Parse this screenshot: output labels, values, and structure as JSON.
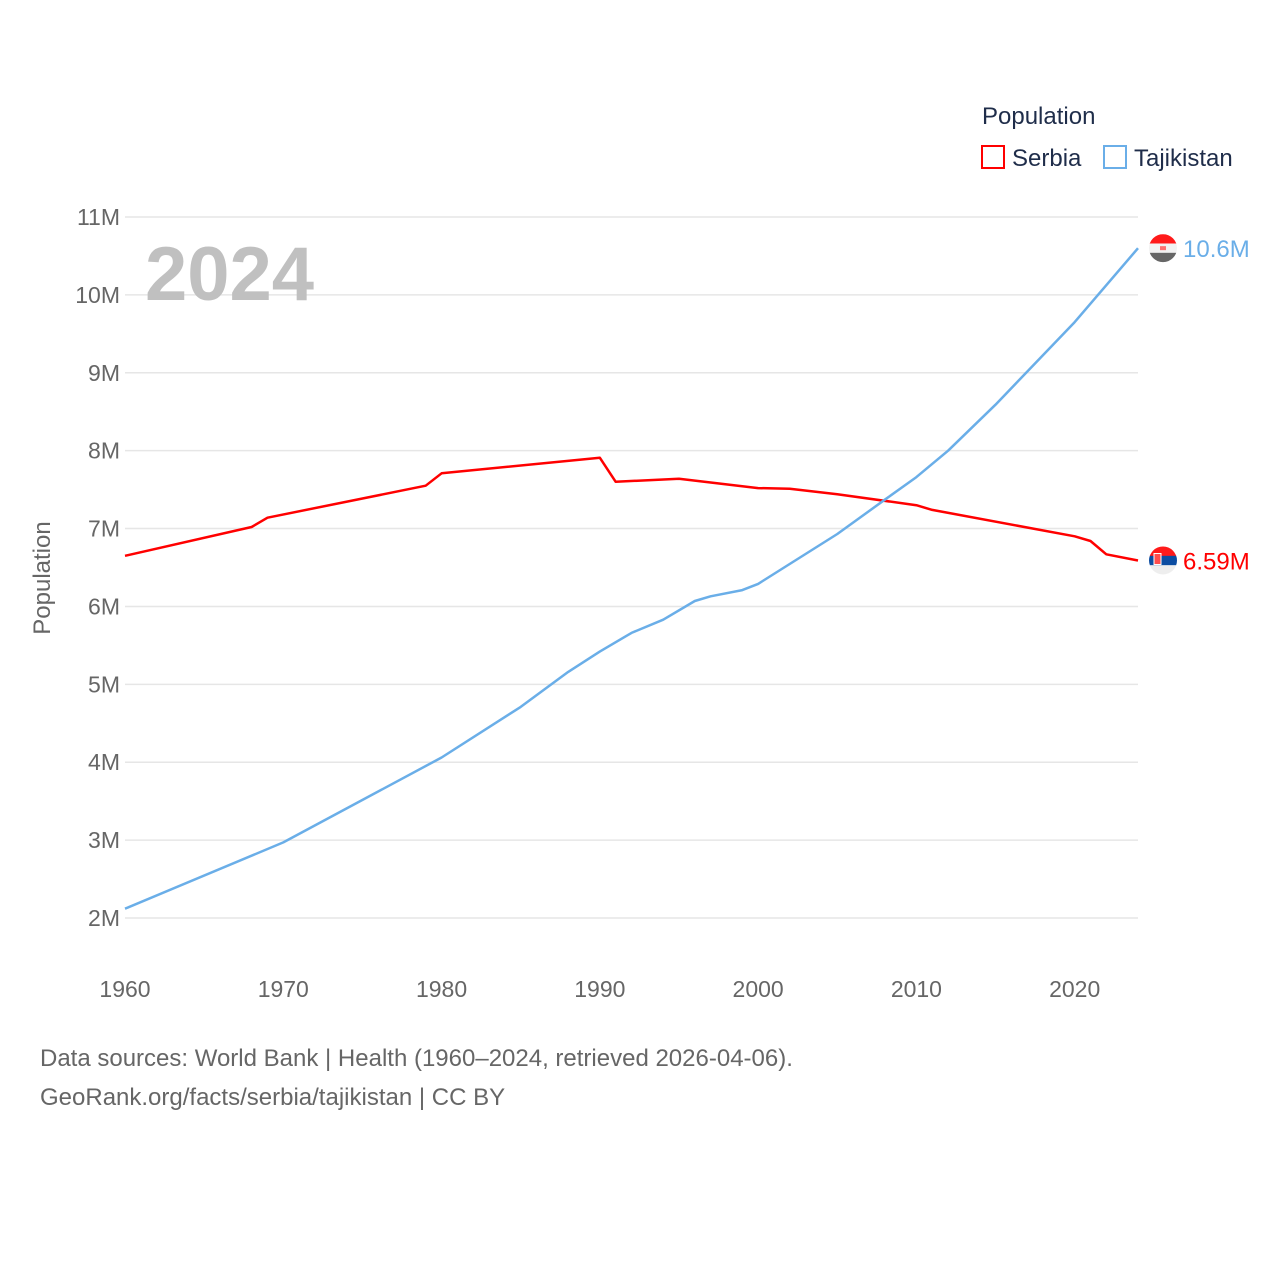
{
  "chart_data": {
    "type": "line",
    "title": "Population",
    "year_label": "2024",
    "ylabel": "Population",
    "xlabel": "",
    "xlim": [
      1960,
      2024
    ],
    "ylim": [
      2000000,
      11000000
    ],
    "x_ticks": [
      "1960",
      "1970",
      "1980",
      "1990",
      "2000",
      "2010",
      "2020"
    ],
    "y_ticks": [
      "2M",
      "3M",
      "4M",
      "5M",
      "6M",
      "7M",
      "8M",
      "9M",
      "10M",
      "11M"
    ],
    "grid": true,
    "legend_placement": "top-right",
    "series": [
      {
        "name": "Serbia",
        "color": "#ff0000",
        "end_label": "6.59M",
        "flag": "serbia-flag",
        "x": [
          1960,
          1968,
          1969,
          1979,
          1980,
          1990,
          1991,
          1995,
          2000,
          2002,
          2005,
          2010,
          2011,
          2020,
          2021,
          2022,
          2024
        ],
        "values": [
          6.65,
          7.02,
          7.14,
          7.55,
          7.71,
          7.91,
          7.6,
          7.64,
          7.52,
          7.51,
          7.44,
          7.3,
          7.24,
          6.9,
          6.84,
          6.67,
          6.59
        ]
      },
      {
        "name": "Tajikistan",
        "color": "#6aaee8",
        "end_label": "10.6M",
        "flag": "tajikistan-flag",
        "x": [
          1960,
          1970,
          1980,
          1985,
          1988,
          1990,
          1992,
          1994,
          1996,
          1997,
          1999,
          2000,
          2005,
          2008,
          2010,
          2012,
          2015,
          2020,
          2024
        ],
        "values": [
          2.12,
          2.97,
          4.06,
          4.71,
          5.16,
          5.42,
          5.66,
          5.83,
          6.07,
          6.13,
          6.21,
          6.29,
          6.93,
          7.37,
          7.66,
          8.0,
          8.59,
          9.65,
          10.6
        ]
      }
    ],
    "value_unit": "millions"
  },
  "footer": {
    "line1": "Data sources: World Bank | Health (1960–2024, retrieved 2026-04-06).",
    "line2": "GeoRank.org/facts/serbia/tajikistan | CC BY"
  }
}
